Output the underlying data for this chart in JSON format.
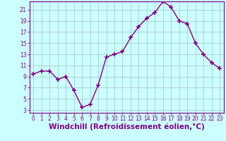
{
  "x": [
    0,
    1,
    2,
    3,
    4,
    5,
    6,
    7,
    8,
    9,
    10,
    11,
    12,
    13,
    14,
    15,
    16,
    17,
    18,
    19,
    20,
    21,
    22,
    23
  ],
  "y": [
    9.5,
    10.0,
    10.0,
    8.5,
    9.0,
    6.5,
    3.5,
    4.0,
    7.5,
    12.5,
    13.0,
    13.5,
    16.0,
    18.0,
    19.5,
    20.5,
    22.5,
    21.5,
    19.0,
    18.5,
    15.0,
    13.0,
    11.5,
    10.5
  ],
  "line_color": "#800080",
  "marker": "+",
  "marker_color": "#800080",
  "bg_color": "#ccffff",
  "grid_color": "#aacccc",
  "xlabel": "Windchill (Refroidissement éolien,°C)",
  "xlabel_color": "#800080",
  "xlim": [
    -0.5,
    23.5
  ],
  "ylim": [
    2.5,
    22.5
  ],
  "yticks": [
    3,
    5,
    7,
    9,
    11,
    13,
    15,
    17,
    19,
    21
  ],
  "xticks": [
    0,
    1,
    2,
    3,
    4,
    5,
    6,
    7,
    8,
    9,
    10,
    11,
    12,
    13,
    14,
    15,
    16,
    17,
    18,
    19,
    20,
    21,
    22,
    23
  ],
  "tick_color": "#800080",
  "tick_fontsize": 5.5,
  "xlabel_fontsize": 7.5,
  "linewidth": 1.0,
  "markersize": 4.0,
  "spine_color": "#800080"
}
